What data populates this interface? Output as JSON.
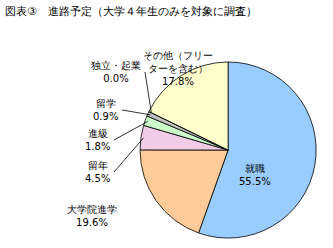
{
  "chart_data": {
    "type": "pie",
    "title": "図表③　進路予定（大学４年生のみを対象に調査）",
    "categories": [
      "就職",
      "大学院進学",
      "留年",
      "進級",
      "留学",
      "独立・起業",
      "その他（フリーターを含む）"
    ],
    "values": [
      55.5,
      19.6,
      4.5,
      1.8,
      0.9,
      0.0,
      17.8
    ],
    "value_labels": [
      "55.5%",
      "19.6%",
      "4.5%",
      "1.8%",
      "0.9%",
      "0.0%",
      "17.8%"
    ],
    "colors": [
      "#99ccff",
      "#ffcc99",
      "#f2cce6",
      "#ccffcc",
      "#c0c0c0",
      "#9999ff",
      "#ffffcc"
    ],
    "data_labels": true
  }
}
